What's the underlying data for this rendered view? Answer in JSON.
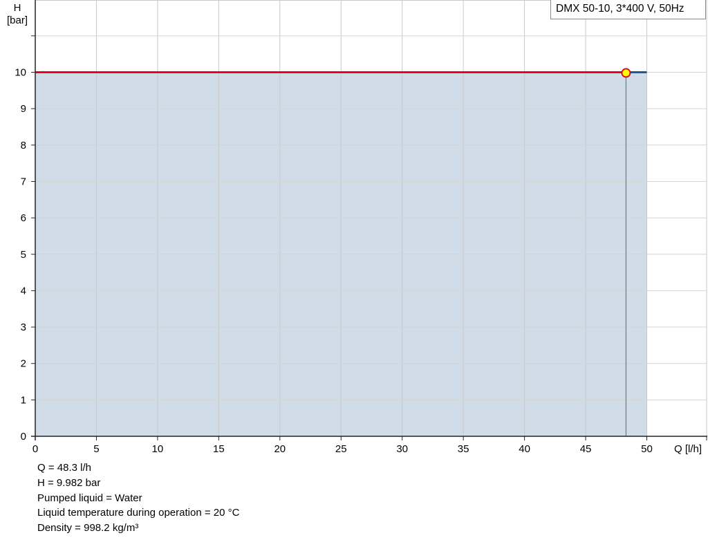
{
  "chart_data": {
    "type": "area",
    "title": "",
    "xlabel": "Q [l/h]",
    "ylabel_line1": "H",
    "ylabel_line2": "[bar]",
    "xlim": [
      0,
      50
    ],
    "ylim": [
      0,
      11
    ],
    "xticks": [
      0,
      5,
      10,
      15,
      20,
      25,
      30,
      35,
      40,
      45,
      50
    ],
    "yticks": [
      0,
      1,
      2,
      3,
      4,
      5,
      6,
      7,
      8,
      9,
      10
    ],
    "grid": true,
    "legend": {
      "position": "top-right",
      "label": "DMX 50-10, 3*400 V, 50Hz"
    },
    "series": [
      {
        "x": [
          0,
          50
        ],
        "y": [
          10,
          10
        ],
        "color": "#1b5a96",
        "fill": "#d0dce8"
      }
    ],
    "operating_point": {
      "q": 48.3,
      "h": 9.982,
      "fill": "#ffff00",
      "stroke": "#e0001a"
    }
  },
  "info": [
    "Q = 48.3 l/h",
    "H = 9.982 bar",
    "Pumped liquid = Water",
    "Liquid temperature during operation = 20 °C",
    "Density = 998.2 kg/m³"
  ]
}
